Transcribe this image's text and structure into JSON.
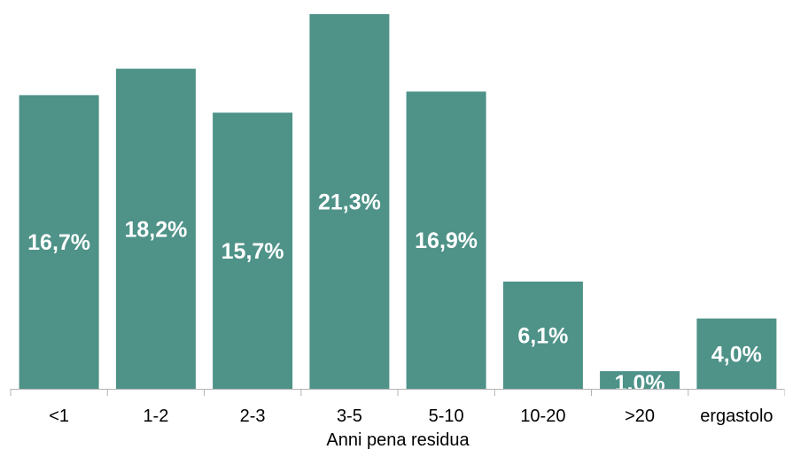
{
  "colors": {
    "bar": "#4e9288",
    "axis": "#b3b3b3",
    "label": "#ffffff",
    "text": "#000000"
  },
  "chart_data": {
    "type": "bar",
    "title": "",
    "xlabel": "Anni pena residua",
    "ylabel": "",
    "categories": [
      "<1",
      "1-2",
      "2-3",
      "3-5",
      "5-10",
      "10-20",
      ">20",
      "ergastolo"
    ],
    "values": [
      16.7,
      18.2,
      15.7,
      21.3,
      16.9,
      6.1,
      1.0,
      4.0
    ],
    "data_labels": [
      "16,7%",
      "18,2%",
      "15,7%",
      "21,3%",
      "16,9%",
      "6,1%",
      "1,0%",
      "4,0%"
    ],
    "ylim": [
      0,
      21.3
    ],
    "grid": false,
    "legend": "none"
  }
}
